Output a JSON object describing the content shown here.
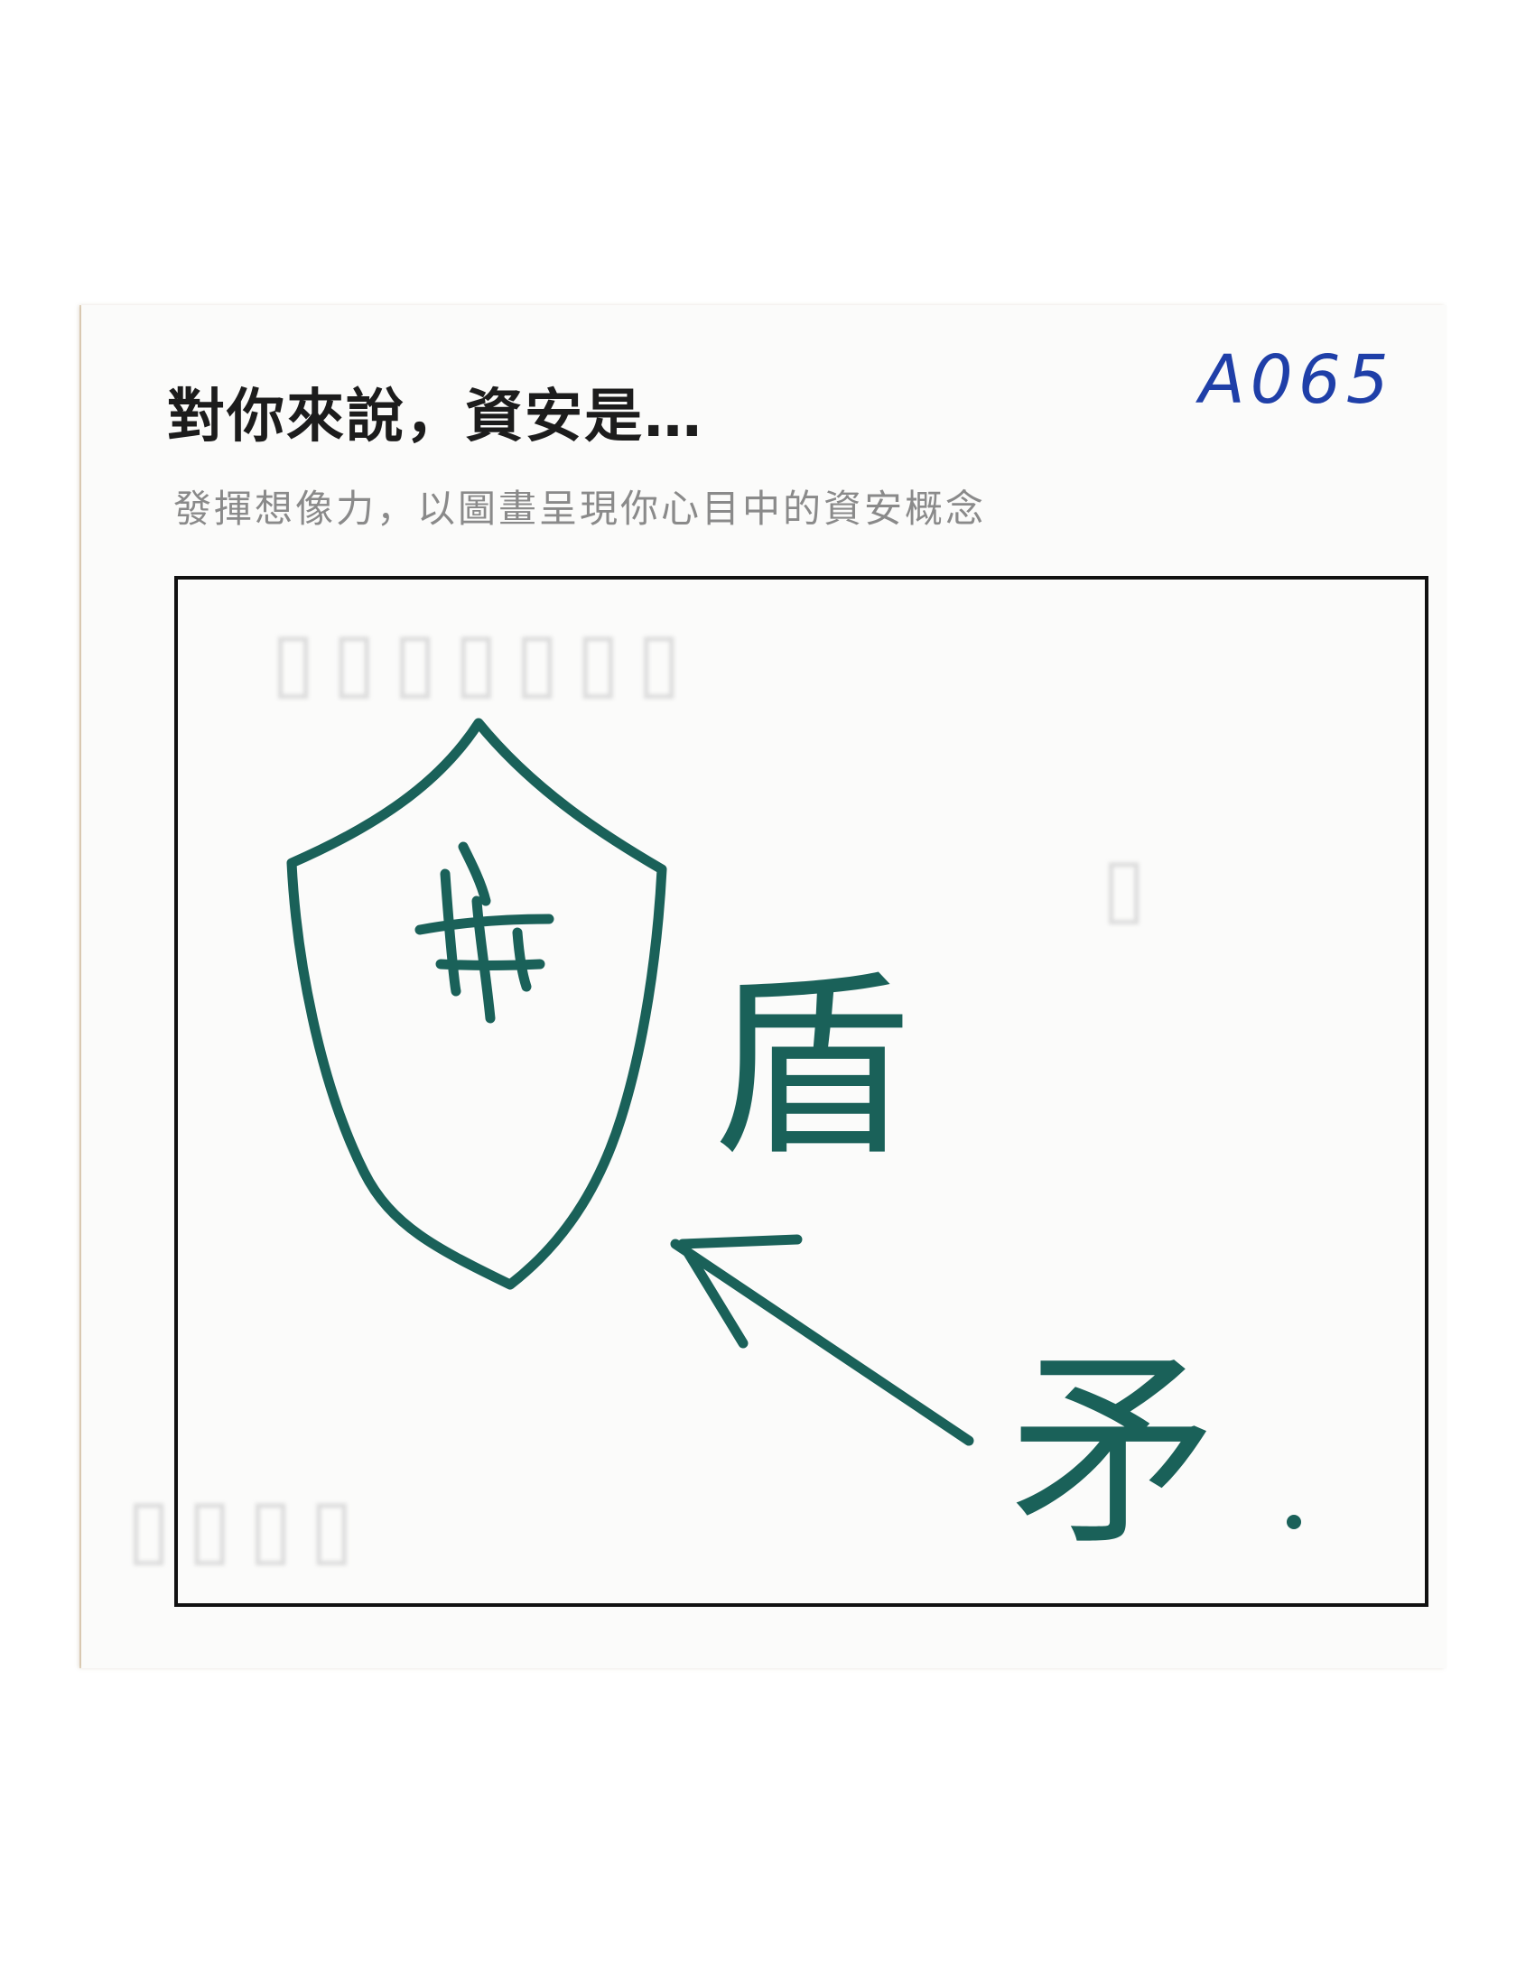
{
  "card": {
    "title": "對你來說，資安是…",
    "subtitle": "發揮想像力，以圖畫呈現你心目中的資安概念",
    "code": "A065"
  },
  "drawing": {
    "shield_label": "盾",
    "spear_label": "矛",
    "ink_color": "#1a6159",
    "code_color": "#1f3fa8"
  }
}
